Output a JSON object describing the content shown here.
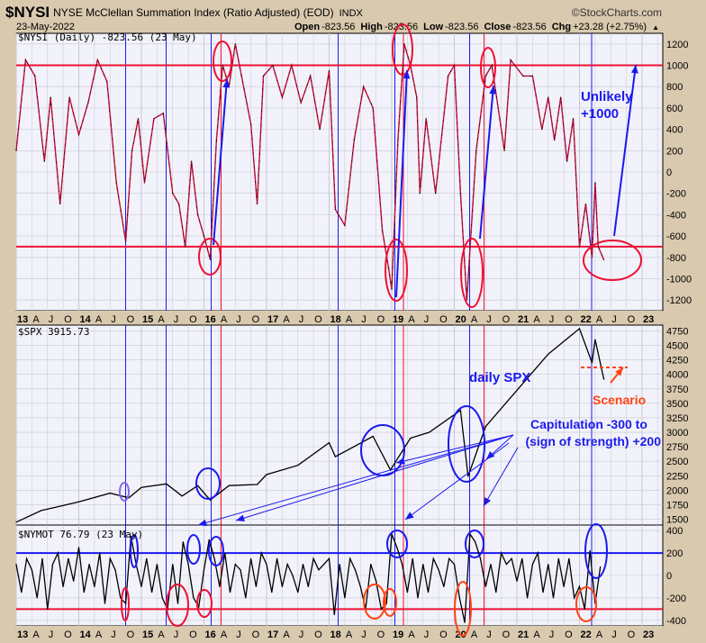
{
  "header": {
    "symbol": "$NYSI",
    "description": "NYSE McClellan Summation Index (Ratio Adjusted) (EOD)",
    "exchange": "INDX",
    "brand": "©StockCharts.com",
    "date": "23-May-2022",
    "open_label": "Open",
    "open": "-823.56",
    "high_label": "High",
    "high": "-823.56",
    "low_label": "Low",
    "low": "-823.56",
    "close_label": "Close",
    "close": "-823.56",
    "chg_label": "Chg",
    "chg": "+23.28 (+2.75%)"
  },
  "colors": {
    "background": "#d9c9ae",
    "panel": "#f2f2fa",
    "grid": "#c8c8d4",
    "red": "#ee1133",
    "blue": "#1a1aee",
    "orange": "#ff4411"
  },
  "x_axis_labels": [
    "13",
    "A",
    "J",
    "O",
    "14",
    "A",
    "J",
    "O",
    "15",
    "A",
    "J",
    "O",
    "16",
    "A",
    "J",
    "O",
    "17",
    "A",
    "J",
    "O",
    "18",
    "A",
    "J",
    "O",
    "19",
    "A",
    "J",
    "O",
    "20",
    "A",
    "J",
    "O",
    "21",
    "A",
    "J",
    "O",
    "22",
    "A",
    "J",
    "O",
    "23"
  ],
  "annotations": {
    "unlikely_1": "Unlikely",
    "unlikely_2": "+1000",
    "daily_spx": "daily SPX",
    "scenario": "Scenario",
    "capitulation_1": "Capitulation -300 to",
    "capitulation_2": "(sign of strength) +200"
  },
  "chart_data": [
    {
      "type": "line",
      "title": "$NYSI (Daily) -823.56 (23 May)",
      "ylim": [
        -1300,
        1300
      ],
      "y_ticks": [
        "1200",
        "1000",
        "800",
        "600",
        "400",
        "200",
        "0",
        "-200",
        "-400",
        "-600",
        "-800",
        "-1000",
        "-1200"
      ],
      "reference_lines": [
        1000,
        -700
      ],
      "x": [
        2013.0,
        2013.15,
        2013.3,
        2013.45,
        2013.55,
        2013.7,
        2013.85,
        2014.0,
        2014.15,
        2014.3,
        2014.45,
        2014.6,
        2014.75,
        2014.85,
        2014.95,
        2015.05,
        2015.2,
        2015.35,
        2015.5,
        2015.6,
        2015.7,
        2015.8,
        2015.9,
        2016.0,
        2016.1,
        2016.2,
        2016.3,
        2016.4,
        2016.5,
        2016.6,
        2016.75,
        2016.85,
        2016.95,
        2017.1,
        2017.25,
        2017.4,
        2017.55,
        2017.7,
        2017.85,
        2018.0,
        2018.1,
        2018.25,
        2018.4,
        2018.55,
        2018.7,
        2018.85,
        2018.95,
        2019.0,
        2019.1,
        2019.2,
        2019.3,
        2019.4,
        2019.45,
        2019.55,
        2019.7,
        2019.9,
        2020.0,
        2020.1,
        2020.2,
        2020.35,
        2020.5,
        2020.6,
        2020.7,
        2020.8,
        2020.9,
        2021.1,
        2021.25,
        2021.4,
        2021.5,
        2021.6,
        2021.7,
        2021.8,
        2021.9,
        2022.0,
        2022.1,
        2022.2,
        2022.25,
        2022.3,
        2022.39
      ],
      "values": [
        200,
        1050,
        900,
        100,
        700,
        -300,
        700,
        350,
        650,
        1050,
        850,
        -100,
        -650,
        200,
        500,
        -100,
        500,
        550,
        -200,
        -300,
        -700,
        100,
        -400,
        -600,
        -820,
        300,
        1000,
        800,
        1200,
        900,
        450,
        -300,
        900,
        1000,
        700,
        1000,
        650,
        900,
        400,
        950,
        -350,
        -500,
        300,
        800,
        600,
        -550,
        -900,
        -1100,
        300,
        1200,
        1000,
        700,
        -200,
        500,
        -200,
        900,
        1000,
        -200,
        -1200,
        200,
        900,
        1000,
        600,
        200,
        1050,
        900,
        900,
        400,
        700,
        300,
        700,
        100,
        500,
        -700,
        -300,
        -800,
        -100,
        -700,
        -823.56
      ]
    },
    {
      "type": "line",
      "title": "$SPX 3915.73",
      "ylim": [
        1400,
        4850
      ],
      "y_ticks": [
        "4750",
        "4500",
        "4250",
        "4000",
        "3750",
        "3500",
        "3250",
        "3000",
        "2750",
        "2500",
        "2250",
        "2000",
        "1750",
        "1500"
      ],
      "x": [
        2013.0,
        2013.4,
        2013.6,
        2014.0,
        2014.5,
        2014.8,
        2015.0,
        2015.4,
        2015.65,
        2015.9,
        2016.1,
        2016.4,
        2016.85,
        2017.0,
        2017.5,
        2018.0,
        2018.1,
        2018.7,
        2018.98,
        2019.3,
        2019.6,
        2020.1,
        2020.22,
        2020.5,
        2020.9,
        2021.5,
        2022.0,
        2022.2,
        2022.25,
        2022.39
      ],
      "values": [
        1450,
        1650,
        1700,
        1800,
        1950,
        1870,
        2050,
        2110,
        1900,
        2080,
        1830,
        2080,
        2100,
        2270,
        2430,
        2820,
        2580,
        2930,
        2350,
        2900,
        3000,
        3380,
        2240,
        3100,
        3600,
        4350,
        4790,
        4200,
        4600,
        3915.73
      ]
    },
    {
      "type": "line",
      "title": "$NYMOT 76.79 (23 May)",
      "ylim": [
        -450,
        450
      ],
      "y_ticks": [
        "400",
        "200",
        "0",
        "-200",
        "-400"
      ],
      "reference_lines": [
        200,
        -300
      ],
      "x_start": 2013.0,
      "x_step_months": 1,
      "values": [
        100,
        -150,
        150,
        50,
        -200,
        150,
        -300,
        100,
        200,
        -100,
        150,
        -50,
        250,
        -150,
        100,
        -100,
        200,
        -250,
        150,
        50,
        -200,
        -250,
        350,
        100,
        -100,
        150,
        -150,
        100,
        -200,
        -300,
        100,
        -250,
        300,
        100,
        -200,
        -280,
        50,
        320,
        150,
        -100,
        200,
        -150,
        100,
        50,
        -200,
        150,
        -100,
        200,
        100,
        -150,
        150,
        -100,
        100,
        0,
        -150,
        100,
        -100,
        150,
        50,
        100,
        150,
        -350,
        100,
        -200,
        150,
        50,
        -100,
        -300,
        100,
        -50,
        -300,
        -250,
        370,
        250,
        100,
        -150,
        150,
        -200,
        100,
        -150,
        150,
        50,
        -100,
        150,
        100,
        -200,
        -420,
        370,
        300,
        150,
        -100,
        100,
        -150,
        200,
        100,
        150,
        -50,
        150,
        -200,
        100,
        200,
        -150,
        100,
        -200,
        150,
        -100,
        150,
        -200,
        -100,
        -300,
        220,
        -250,
        76.79
      ]
    }
  ]
}
